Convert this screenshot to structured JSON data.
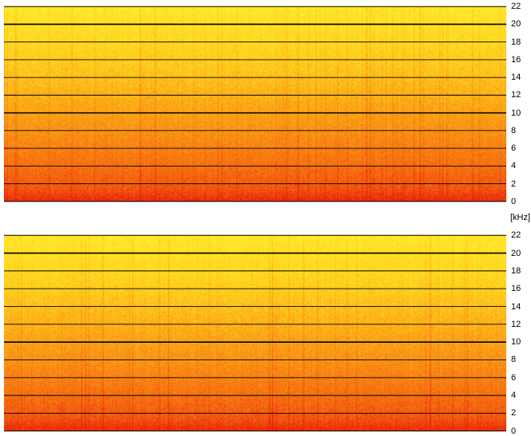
{
  "chart_data": [
    {
      "type": "heatmap",
      "name": "",
      "y_ticks": [
        0,
        2,
        4,
        6,
        8,
        10,
        12,
        14,
        16,
        18,
        20,
        22
      ],
      "ylim": [
        0,
        22
      ],
      "emphasized_lines": [
        10,
        20
      ],
      "colormap": [
        "#e8220a",
        "#f56410",
        "#fa9a14",
        "#ffd21e",
        "#fff030"
      ]
    },
    {
      "type": "heatmap",
      "name": "",
      "y_ticks": [
        0,
        2,
        4,
        6,
        8,
        10,
        12,
        14,
        16,
        18,
        20,
        22
      ],
      "ylim": [
        0,
        22
      ],
      "emphasized_lines": [
        10,
        20
      ],
      "colormap": [
        "#e8220a",
        "#f56410",
        "#fa9a14",
        "#ffd21e",
        "#fff030"
      ]
    }
  ],
  "unit_label": "[kHz]"
}
